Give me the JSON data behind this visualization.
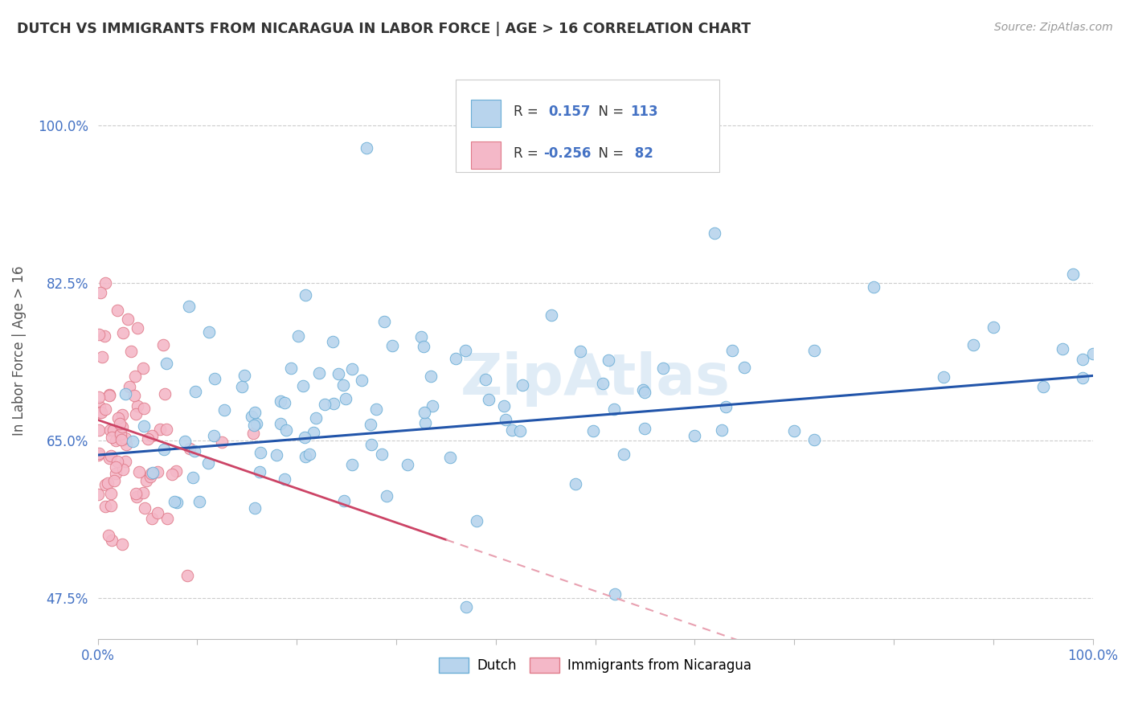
{
  "title": "DUTCH VS IMMIGRANTS FROM NICARAGUA IN LABOR FORCE | AGE > 16 CORRELATION CHART",
  "source": "Source: ZipAtlas.com",
  "ylabel": "In Labor Force | Age > 16",
  "xlim": [
    0.0,
    1.0
  ],
  "ylim": [
    0.43,
    1.07
  ],
  "yticks": [
    0.475,
    0.65,
    0.825,
    1.0
  ],
  "ytick_labels": [
    "47.5%",
    "65.0%",
    "82.5%",
    "100.0%"
  ],
  "xticks": [
    0.0,
    0.1,
    0.2,
    0.3,
    0.4,
    0.5,
    0.6,
    0.7,
    0.8,
    0.9,
    1.0
  ],
  "xtick_labels": [
    "0.0%",
    "",
    "",
    "",
    "",
    "",
    "",
    "",
    "",
    "",
    "100.0%"
  ],
  "dutch_color": "#b8d4ed",
  "dutch_edge_color": "#6baed6",
  "nicaragua_color": "#f4b8c8",
  "nicaragua_edge_color": "#e07b8a",
  "trend_dutch_color": "#2255aa",
  "trend_nicaragua_solid_color": "#cc4466",
  "trend_nicaragua_dash_color": "#e8a0b0",
  "legend_r_color": "#4472c4",
  "legend_n_color": "#333333",
  "watermark": "ZipAtlas",
  "watermark_color": "#c8ddf0",
  "background_color": "#ffffff",
  "grid_color": "#cccccc",
  "tick_label_color": "#4472c4",
  "title_color": "#333333",
  "source_color": "#999999",
  "ylabel_color": "#555555"
}
